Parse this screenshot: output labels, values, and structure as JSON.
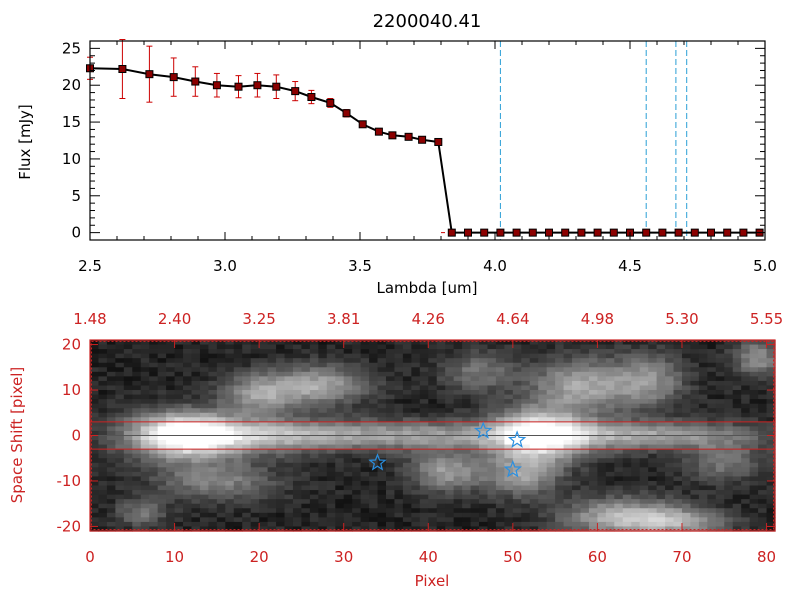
{
  "chart_data": [
    {
      "type": "line",
      "title": "2200040.41",
      "xlabel": "Lambda [um]",
      "ylabel": "Flux [mJy]",
      "xlim": [
        2.5,
        5.0
      ],
      "ylim": [
        -1,
        26
      ],
      "x_ticks": [
        "2.5",
        "3.0",
        "3.5",
        "4.0",
        "4.5",
        "5.0"
      ],
      "y_ticks": [
        "0",
        "5",
        "10",
        "15",
        "20",
        "25"
      ],
      "series": [
        {
          "color": "#000000",
          "marker_color": "#8b0000",
          "errorbar_color": "#cc0000",
          "x": [
            2.5,
            2.62,
            2.72,
            2.81,
            2.89,
            2.97,
            3.05,
            3.12,
            3.19,
            3.26,
            3.32,
            3.39,
            3.45,
            3.51,
            3.57,
            3.62,
            3.68,
            3.73,
            3.79,
            3.84,
            3.9,
            3.96,
            4.02,
            4.08,
            4.14,
            4.2,
            4.26,
            4.32,
            4.38,
            4.44,
            4.5,
            4.56,
            4.62,
            4.68,
            4.74,
            4.8,
            4.86,
            4.92,
            4.98
          ],
          "y": [
            22.3,
            22.2,
            21.5,
            21.1,
            20.5,
            20.0,
            19.8,
            20.0,
            19.8,
            19.2,
            18.4,
            17.6,
            16.2,
            14.7,
            13.7,
            13.2,
            13.0,
            12.6,
            12.3,
            0.0,
            0.0,
            0.0,
            0.0,
            0.0,
            0.0,
            0.0,
            0.0,
            0.0,
            0.0,
            0.0,
            0.0,
            0.0,
            0.0,
            0.0,
            0.0,
            0.0,
            0.0,
            0.0,
            0.0
          ],
          "err": [
            1.5,
            4.0,
            3.8,
            2.6,
            2.0,
            1.6,
            1.5,
            1.6,
            1.6,
            1.3,
            0.9,
            0.6,
            0.5,
            0.4,
            0.4,
            0.3,
            0.3,
            0.3,
            0.3,
            0,
            0,
            0,
            0,
            0,
            0,
            0,
            0,
            0,
            0,
            0,
            0,
            0,
            0,
            0,
            0,
            0,
            0,
            0,
            0
          ]
        }
      ],
      "vlines": {
        "x": [
          4.02,
          4.56,
          4.67,
          4.71
        ],
        "color": "#2a9fd6",
        "style": "dashed"
      },
      "hline": {
        "y": 0,
        "color": "#cc0000",
        "style": "dashed"
      }
    },
    {
      "type": "heatmap",
      "xlabel": "Pixel",
      "ylabel": "Space Shift [pixel]",
      "xlim": [
        0,
        81
      ],
      "ylim": [
        -21,
        21
      ],
      "x_ticks": [
        "0",
        "10",
        "20",
        "30",
        "40",
        "50",
        "60",
        "70",
        "80"
      ],
      "y_ticks": [
        "-20",
        "-10",
        "0",
        "10",
        "20"
      ],
      "top_axis_labels": [
        "1.48",
        "2.40",
        "3.25",
        "3.81",
        "4.26",
        "4.64",
        "4.98",
        "5.30",
        "5.55"
      ],
      "axis_color": "#cc2222",
      "extraction_lines_y": [
        3.0,
        -3.0
      ],
      "center_line_y": 0,
      "blobs": [
        {
          "x": 11,
          "y": 0,
          "sx": 4.5,
          "sy": 3.5,
          "v": 1.0
        },
        {
          "x": 53,
          "y": 0,
          "sx": 4.0,
          "sy": 4.0,
          "v": 0.9
        },
        {
          "x": 21,
          "y": 0,
          "sx": 7,
          "sy": 2.5,
          "v": 0.55
        },
        {
          "x": 38,
          "y": 0,
          "sx": 8,
          "sy": 2.2,
          "v": 0.45
        },
        {
          "x": 65,
          "y": 0,
          "sx": 10,
          "sy": 2.2,
          "v": 0.5
        },
        {
          "x": 20,
          "y": 9,
          "sx": 3,
          "sy": 3,
          "v": 0.45
        },
        {
          "x": 27,
          "y": 11,
          "sx": 4,
          "sy": 3,
          "v": 0.5
        },
        {
          "x": 58,
          "y": 11,
          "sx": 4,
          "sy": 4,
          "v": 0.5
        },
        {
          "x": 66,
          "y": 12,
          "sx": 3,
          "sy": 4,
          "v": 0.4
        },
        {
          "x": 79,
          "y": 17,
          "sx": 2,
          "sy": 3,
          "v": 0.4
        },
        {
          "x": 15,
          "y": -10,
          "sx": 5,
          "sy": 3,
          "v": 0.35
        },
        {
          "x": 42,
          "y": -8,
          "sx": 3,
          "sy": 3,
          "v": 0.45
        },
        {
          "x": 51,
          "y": -9,
          "sx": 3,
          "sy": 3,
          "v": 0.45
        },
        {
          "x": 63,
          "y": -18,
          "sx": 5,
          "sy": 3,
          "v": 0.55
        },
        {
          "x": 70,
          "y": -19,
          "sx": 4,
          "sy": 2,
          "v": 0.4
        },
        {
          "x": 6,
          "y": -17,
          "sx": 2,
          "sy": 2,
          "v": 0.3
        },
        {
          "x": 46,
          "y": 14,
          "sx": 3,
          "sy": 3,
          "v": 0.3
        },
        {
          "x": 75,
          "y": -6,
          "sx": 3,
          "sy": 3,
          "v": 0.3
        }
      ],
      "stars": [
        {
          "x": 34,
          "y": -6
        },
        {
          "x": 46.5,
          "y": 1
        },
        {
          "x": 50.5,
          "y": -1
        },
        {
          "x": 50.0,
          "y": -7.5
        }
      ],
      "star_color": "#2a8fe0"
    }
  ]
}
